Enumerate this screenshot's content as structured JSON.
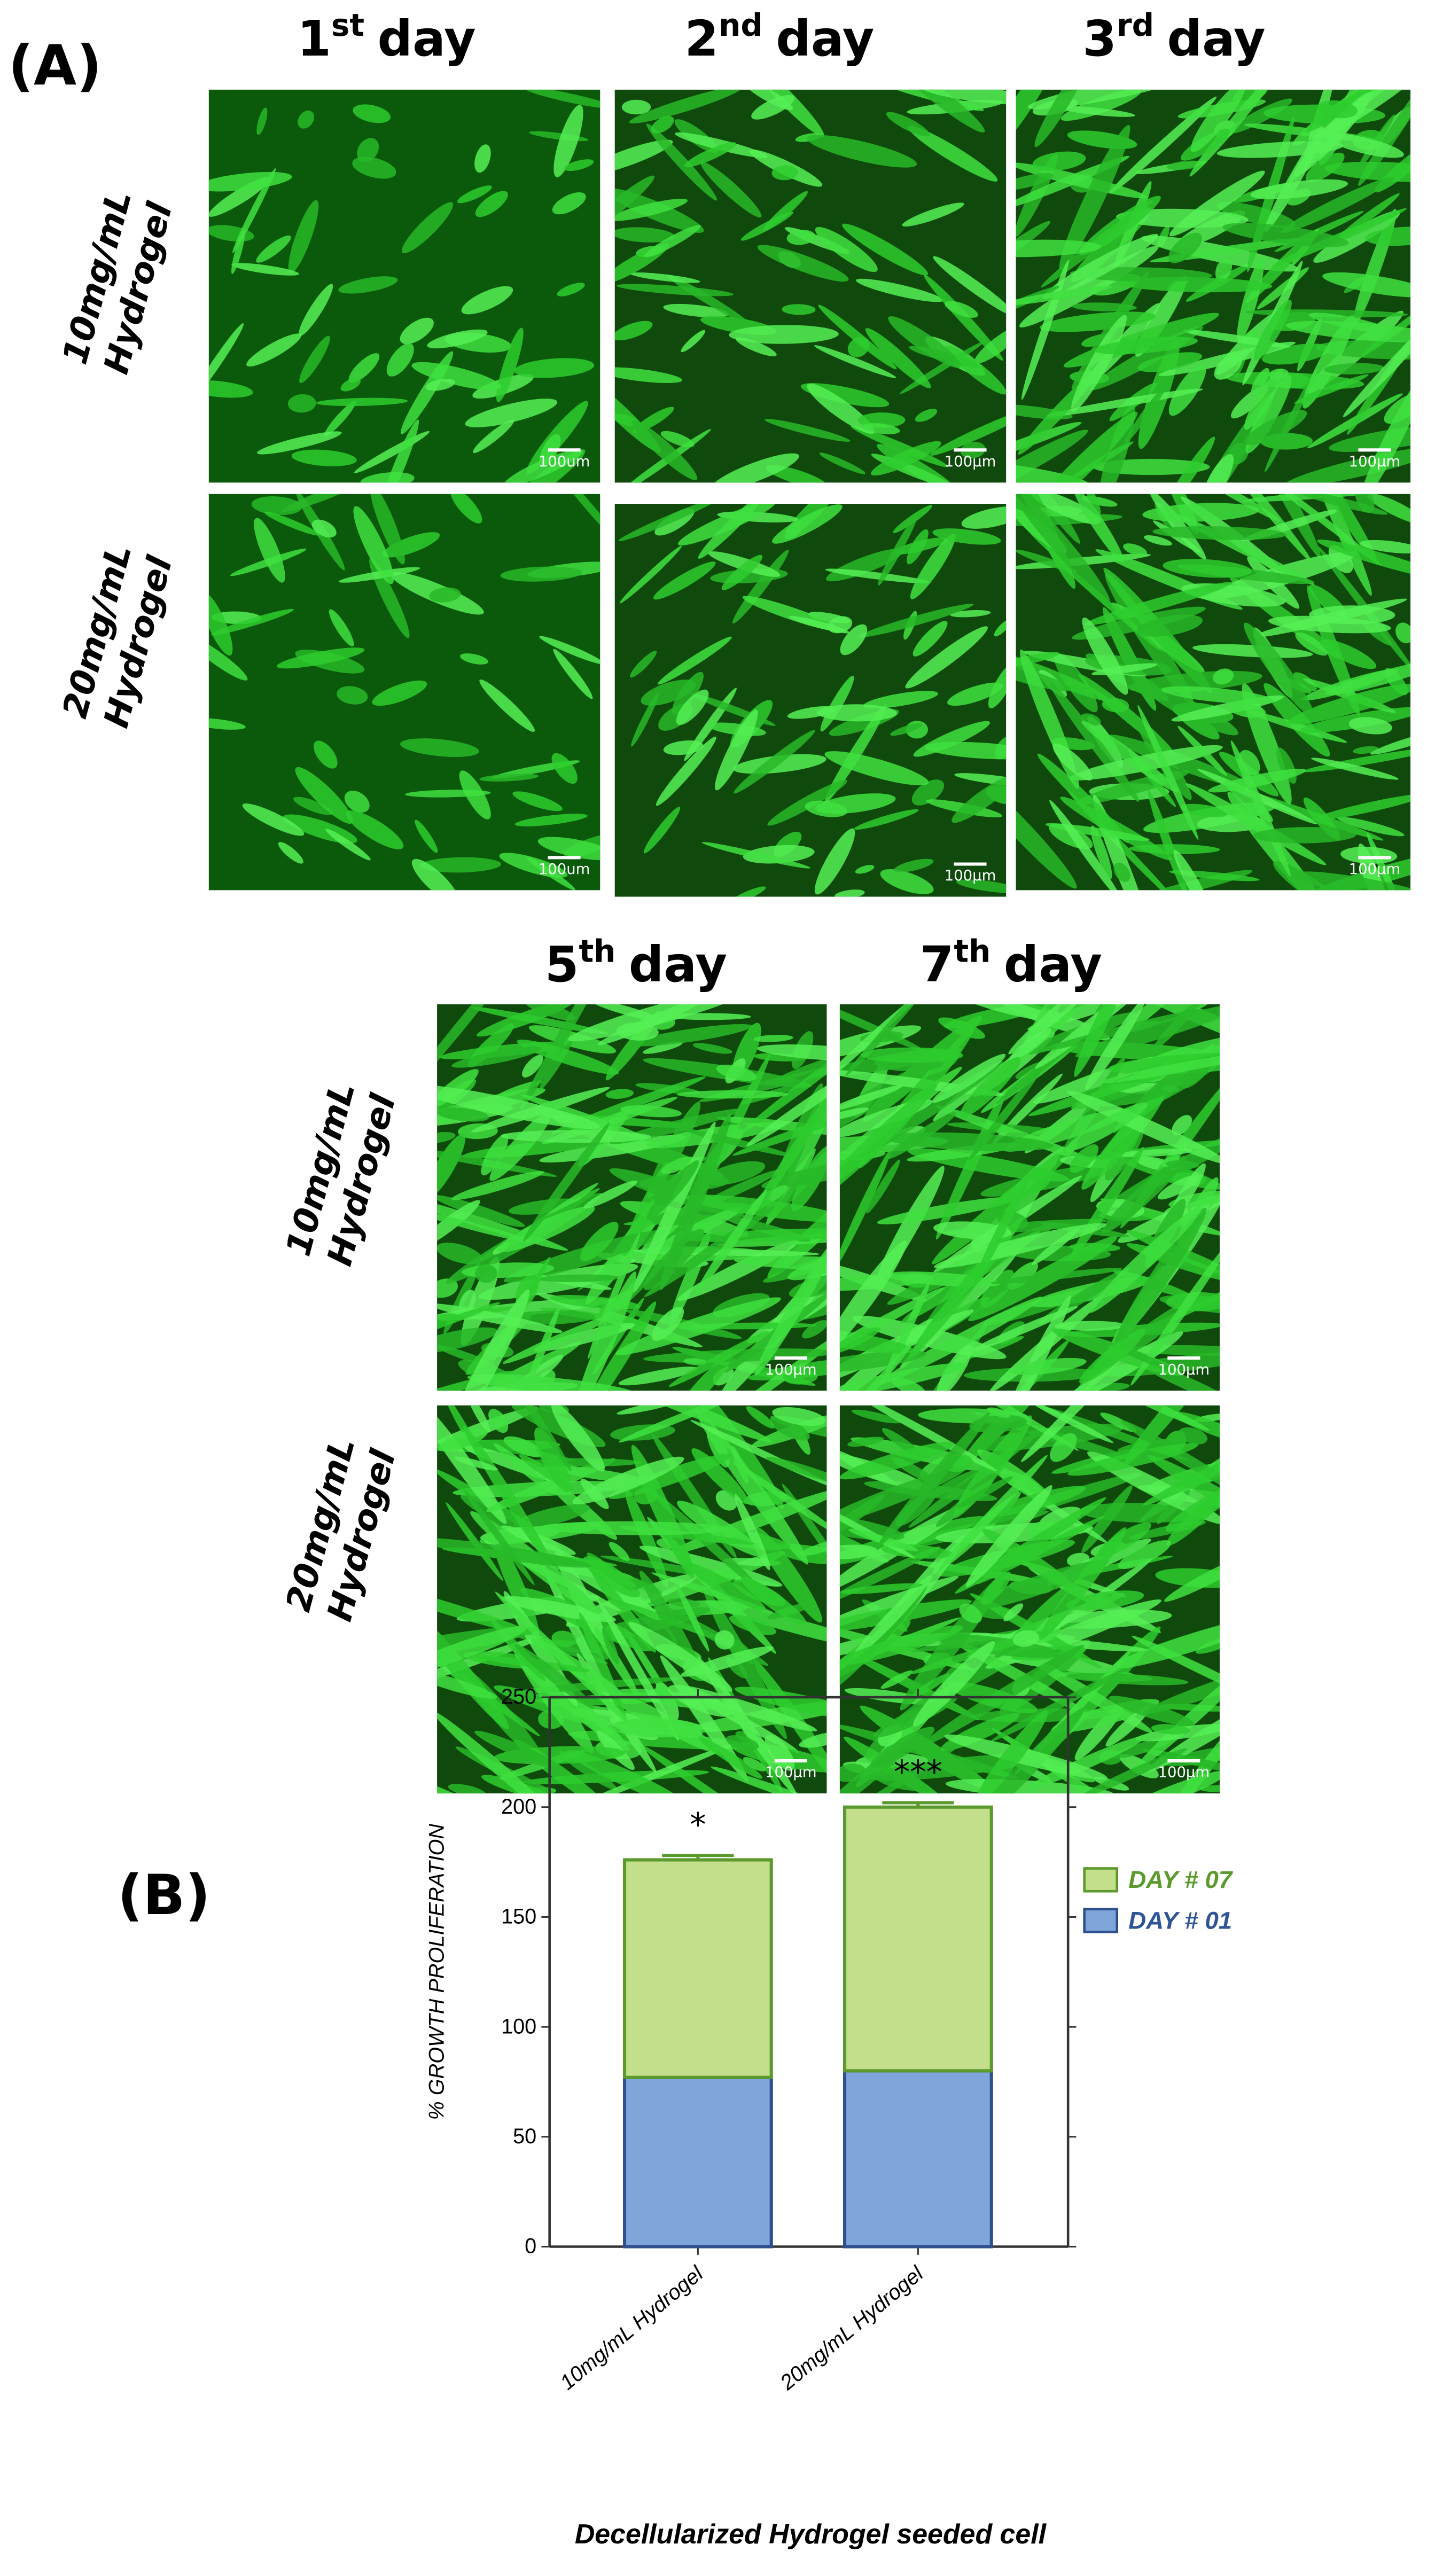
{
  "panel_a": {
    "label": "(A)",
    "headers": [
      {
        "number": "1",
        "suffix": "st",
        "word": "day"
      },
      {
        "number": "2",
        "suffix": "nd",
        "word": "day"
      },
      {
        "number": "3",
        "suffix": "rd",
        "word": "day"
      },
      {
        "number": "5",
        "suffix": "th",
        "word": "day"
      },
      {
        "number": "7",
        "suffix": "th",
        "word": "day"
      }
    ],
    "row_labels": [
      {
        "line1": "10mg/mL",
        "line2": "Hydrogel"
      },
      {
        "line1": "20mg/mL",
        "line2": "Hydrogel"
      }
    ],
    "scale_labels": [
      "100um",
      "100μm",
      "100μm",
      "100um",
      "100μm",
      "100μm",
      "100μm",
      "100μm",
      "100μm",
      "100μm"
    ]
  },
  "panel_b_label": "(B)",
  "chart_data": {
    "type": "bar",
    "stacked": true,
    "categories": [
      "10mg/mL Hydrogel",
      "20mg/mL Hydrogel"
    ],
    "series": [
      {
        "name": "DAY # 01",
        "color": "#7fa6db",
        "edge_color": "#2f4f8f",
        "text_color": "#2f5597",
        "values": [
          77,
          80
        ],
        "errors": [
          6,
          2
        ]
      },
      {
        "name": "DAY # 07",
        "color": "#c3df8b",
        "edge_color": "#5b9a2c",
        "text_color": "#5b9a2c",
        "values": [
          99,
          120
        ],
        "errors": [
          2,
          2
        ]
      }
    ],
    "annotations": [
      "*",
      "***"
    ],
    "ylim": [
      0,
      250
    ],
    "yticks": [
      0,
      50,
      100,
      150,
      200,
      250
    ],
    "ylabel": "% GROWTH PROLIFERATION",
    "xlabel": "Decellularized Hydrogel seeded cell"
  }
}
